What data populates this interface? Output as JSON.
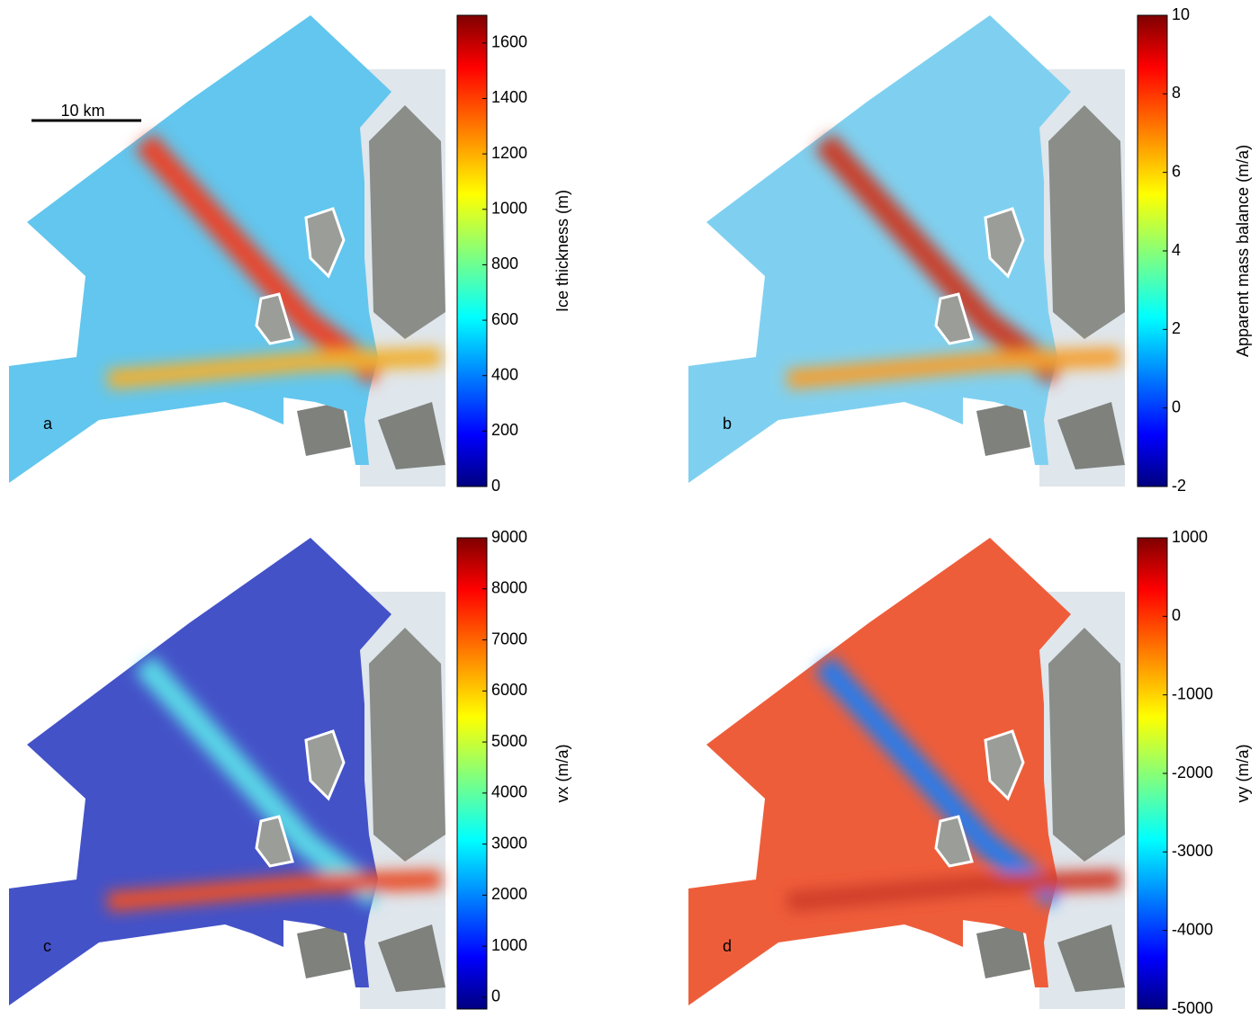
{
  "scale_bar": "10 km",
  "panels": [
    {
      "letter": "a",
      "colorbar": {
        "label": "Ice thickness (m)",
        "lim": [
          0,
          1700
        ],
        "ticks": [
          0,
          200,
          400,
          600,
          800,
          1000,
          1200,
          1400,
          1600
        ]
      }
    },
    {
      "letter": "b",
      "colorbar": {
        "label": "Apparent mass balance (m/a)",
        "lim": [
          -2,
          10
        ],
        "ticks": [
          -2,
          0,
          2,
          4,
          6,
          8,
          10
        ]
      }
    },
    {
      "letter": "c",
      "colorbar": {
        "label": "vx (m/a)",
        "lim": [
          -230,
          9000
        ],
        "ticks": [
          0,
          1000,
          2000,
          3000,
          4000,
          5000,
          6000,
          7000,
          8000,
          9000
        ]
      }
    },
    {
      "letter": "d",
      "colorbar": {
        "label": "vy (m/a)",
        "lim": [
          -5000,
          1000
        ],
        "ticks": [
          -5000,
          -4000,
          -3000,
          -2000,
          -1000,
          0,
          1000
        ]
      }
    }
  ]
}
